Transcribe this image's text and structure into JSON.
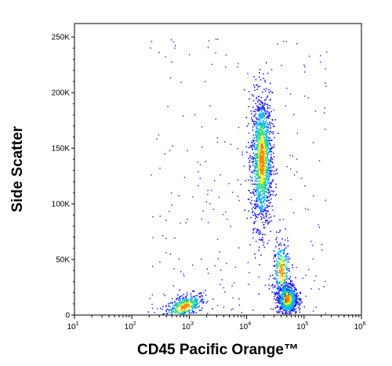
{
  "chart_data": {
    "type": "scatter",
    "plot_style": "density-dot-plot",
    "xlabel": "CD45 Pacific Orange™",
    "ylabel": "Side Scatter",
    "x_scale": "log",
    "xlim": [
      10,
      1000000
    ],
    "ylim": [
      0,
      262144
    ],
    "x_ticks": [
      {
        "value": 10,
        "base": "10",
        "exp": "1"
      },
      {
        "value": 100,
        "base": "10",
        "exp": "2"
      },
      {
        "value": 1000,
        "base": "10",
        "exp": "3"
      },
      {
        "value": 10000,
        "base": "10",
        "exp": "4"
      },
      {
        "value": 100000,
        "base": "10",
        "exp": "5"
      },
      {
        "value": 1000000,
        "base": "10",
        "exp": "6"
      }
    ],
    "y_ticks": [
      {
        "value": 0,
        "label": "0"
      },
      {
        "value": 50000,
        "label": "50K"
      },
      {
        "value": 100000,
        "label": "100K"
      },
      {
        "value": 150000,
        "label": "150K"
      },
      {
        "value": 200000,
        "label": "200K"
      },
      {
        "value": 250000,
        "label": "250K"
      }
    ],
    "populations": [
      {
        "x_center": 800,
        "x_spread_log": 0.18,
        "y_center": 8000,
        "y_spread": 5000,
        "tilt": 3000,
        "count": 420,
        "peak_color": "#ff6a00"
      },
      {
        "x_center": 18000,
        "x_spread_log": 0.09,
        "y_center": 140000,
        "y_spread": 30000,
        "tilt": 0,
        "count": 1500,
        "peak_color": "#20d060"
      },
      {
        "x_center": 50000,
        "x_spread_log": 0.09,
        "y_center": 15000,
        "y_spread": 7000,
        "tilt": 0,
        "count": 800,
        "peak_color": "#e00000"
      },
      {
        "x_center": 40000,
        "x_spread_log": 0.08,
        "y_center": 40000,
        "y_spread": 14000,
        "tilt": 0,
        "count": 280,
        "peak_color": "#1fd0ff"
      }
    ],
    "grid": false,
    "legend": "none"
  }
}
